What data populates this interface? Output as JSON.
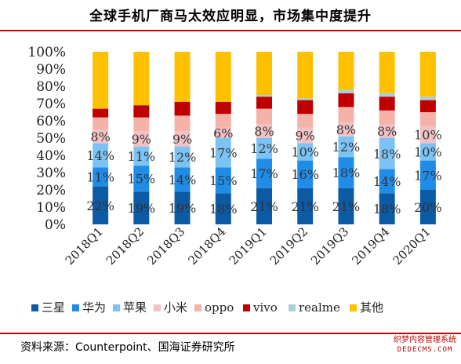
{
  "title": "全球手机厂商马太效应明显，市场集中度提升",
  "source": "资料来源：Counterpoint、国海证券研究所",
  "watermark": {
    "line1": "织梦内容管理系统",
    "line2": "DEDECMS.COM"
  },
  "colors": {
    "三星": "#0b5aa3",
    "华为": "#1f8ce8",
    "苹果": "#7cc3f5",
    "小米": "#f1c2c5",
    "oppo": "#f4b2a8",
    "vivo": "#c00000",
    "realme": "#aad0dc",
    "其他": "#ffc000",
    "title_rule": "#c00000"
  },
  "chart_data": {
    "type": "bar",
    "stacked": true,
    "normalized": true,
    "categories": [
      "2018Q1",
      "2018Q2",
      "2018Q3",
      "2018Q4",
      "2019Q1",
      "2019Q2",
      "2019Q3",
      "2019Q4",
      "2020Q1"
    ],
    "series": [
      {
        "name": "三星",
        "values": [
          22,
          19,
          19,
          18,
          21,
          21,
          21,
          18,
          20
        ]
      },
      {
        "name": "华为",
        "values": [
          11,
          15,
          14,
          15,
          17,
          16,
          18,
          14,
          17
        ]
      },
      {
        "name": "苹果",
        "values": [
          14,
          11,
          12,
          17,
          12,
          10,
          12,
          18,
          10
        ]
      },
      {
        "name": "小米",
        "values": [
          8,
          9,
          9,
          6,
          8,
          9,
          8,
          8,
          10
        ]
      },
      {
        "name": "oppo",
        "values": [
          7,
          8,
          9,
          8,
          9,
          8,
          9,
          8,
          8
        ]
      },
      {
        "name": "vivo",
        "values": [
          5,
          7,
          8,
          7,
          7,
          8,
          8,
          8,
          7
        ]
      },
      {
        "name": "realme",
        "values": [
          0,
          0,
          0,
          0,
          1,
          1,
          2,
          2,
          2
        ]
      },
      {
        "name": "其他",
        "values": [
          33,
          31,
          29,
          29,
          25,
          27,
          22,
          24,
          26
        ]
      }
    ],
    "labeled_series": [
      "三星",
      "华为",
      "苹果",
      "小米"
    ],
    "ylim": [
      0,
      100
    ],
    "yticks": [
      "0%",
      "10%",
      "20%",
      "30%",
      "40%",
      "50%",
      "60%",
      "70%",
      "80%",
      "90%",
      "100%"
    ],
    "legend_position": "bottom",
    "grid": false
  }
}
